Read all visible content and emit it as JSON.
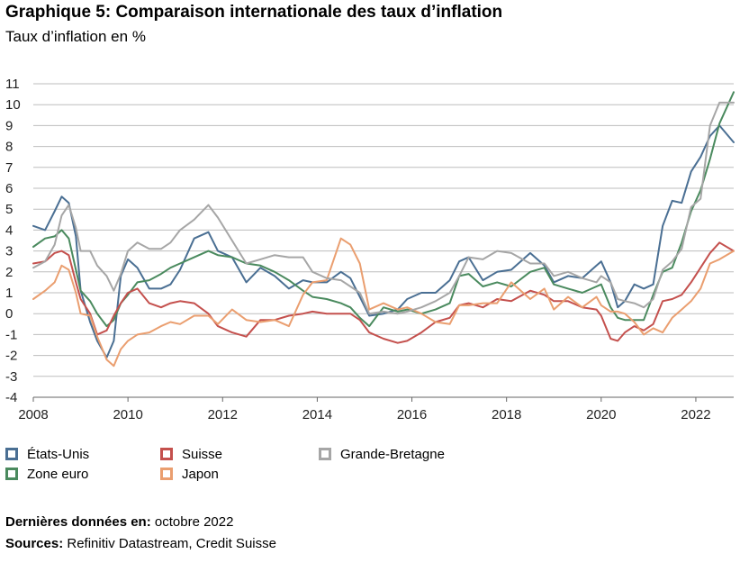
{
  "header": {
    "title": "Graphique 5: Comparaison internationale des taux d’inflation",
    "subtitle": "Taux d’inflation en %"
  },
  "footer": {
    "latest_label": "Dernières données en:",
    "latest_value": "octobre 2022",
    "sources_label": "Sources:",
    "sources_value": "Refinitiv Datastream, Credit Suisse"
  },
  "legend": [
    {
      "label": "États-Unis",
      "color": "#4a6f93"
    },
    {
      "label": "Zone euro",
      "color": "#4a8a5e"
    },
    {
      "label": "Suisse",
      "color": "#c4504d"
    },
    {
      "label": "Japon",
      "color": "#ea9e6f"
    },
    {
      "label": "Grande-Bretagne",
      "color": "#a6a6a6"
    }
  ],
  "chart_data": {
    "type": "line",
    "title": "Graphique 5: Comparaison internationale des taux d’inflation",
    "ylabel": "Taux d’inflation en %",
    "xlabel": "",
    "xlim": [
      2008,
      2022.8
    ],
    "ylim": [
      -4,
      11
    ],
    "xticks": [
      2008,
      2010,
      2012,
      2014,
      2016,
      2018,
      2020,
      2022
    ],
    "yticks": [
      -4,
      -3,
      -2,
      -1,
      0,
      1,
      2,
      3,
      4,
      5,
      6,
      7,
      8,
      9,
      10,
      11
    ],
    "grid": "horizontal",
    "legend_position": "bottom",
    "series": [
      {
        "name": "États-Unis",
        "color": "#4a6f93",
        "x": [
          2008.0,
          2008.25,
          2008.45,
          2008.6,
          2008.75,
          2008.9,
          2009.0,
          2009.2,
          2009.35,
          2009.55,
          2009.7,
          2009.85,
          2010.0,
          2010.2,
          2010.45,
          2010.7,
          2010.9,
          2011.1,
          2011.4,
          2011.7,
          2011.9,
          2012.2,
          2012.5,
          2012.8,
          2013.1,
          2013.4,
          2013.7,
          2013.9,
          2014.2,
          2014.5,
          2014.7,
          2014.9,
          2015.1,
          2015.4,
          2015.7,
          2015.9,
          2016.2,
          2016.5,
          2016.8,
          2017.0,
          2017.2,
          2017.5,
          2017.8,
          2018.1,
          2018.5,
          2018.8,
          2019.0,
          2019.3,
          2019.6,
          2019.9,
          2020.0,
          2020.2,
          2020.35,
          2020.5,
          2020.7,
          2020.9,
          2021.1,
          2021.3,
          2021.5,
          2021.7,
          2021.9,
          2022.1,
          2022.3,
          2022.5,
          2022.8
        ],
        "y": [
          4.2,
          4.0,
          4.9,
          5.6,
          5.3,
          3.7,
          1.1,
          -0.4,
          -1.3,
          -2.1,
          -1.3,
          1.8,
          2.6,
          2.2,
          1.2,
          1.2,
          1.4,
          2.1,
          3.6,
          3.9,
          3.0,
          2.7,
          1.5,
          2.2,
          1.8,
          1.2,
          1.6,
          1.5,
          1.5,
          2.0,
          1.7,
          0.8,
          -0.1,
          0.0,
          0.2,
          0.7,
          1.0,
          1.0,
          1.6,
          2.5,
          2.7,
          1.6,
          2.0,
          2.1,
          2.9,
          2.3,
          1.5,
          1.8,
          1.7,
          2.3,
          2.5,
          1.5,
          0.3,
          0.6,
          1.4,
          1.2,
          1.4,
          4.2,
          5.4,
          5.3,
          6.8,
          7.5,
          8.5,
          9.0,
          8.2
        ]
      },
      {
        "name": "Zone euro",
        "color": "#4a8a5e",
        "x": [
          2008.0,
          2008.25,
          2008.45,
          2008.6,
          2008.75,
          2008.9,
          2009.0,
          2009.2,
          2009.35,
          2009.55,
          2009.7,
          2009.85,
          2010.0,
          2010.2,
          2010.45,
          2010.7,
          2010.9,
          2011.1,
          2011.4,
          2011.7,
          2011.9,
          2012.2,
          2012.5,
          2012.8,
          2013.1,
          2013.4,
          2013.7,
          2013.9,
          2014.2,
          2014.5,
          2014.7,
          2014.9,
          2015.1,
          2015.4,
          2015.7,
          2015.9,
          2016.2,
          2016.5,
          2016.8,
          2017.0,
          2017.2,
          2017.5,
          2017.8,
          2018.1,
          2018.5,
          2018.8,
          2019.0,
          2019.3,
          2019.6,
          2019.9,
          2020.0,
          2020.2,
          2020.35,
          2020.5,
          2020.7,
          2020.9,
          2021.1,
          2021.3,
          2021.5,
          2021.7,
          2021.9,
          2022.1,
          2022.3,
          2022.5,
          2022.8
        ],
        "y": [
          3.2,
          3.6,
          3.7,
          4.0,
          3.6,
          2.1,
          1.1,
          0.6,
          0.0,
          -0.6,
          -0.3,
          0.5,
          0.9,
          1.5,
          1.6,
          1.9,
          2.2,
          2.4,
          2.7,
          3.0,
          2.8,
          2.7,
          2.4,
          2.3,
          2.0,
          1.6,
          1.1,
          0.8,
          0.7,
          0.5,
          0.3,
          -0.2,
          -0.6,
          0.3,
          0.1,
          0.2,
          0.0,
          0.2,
          0.5,
          1.8,
          1.9,
          1.3,
          1.5,
          1.3,
          2.0,
          2.2,
          1.4,
          1.2,
          1.0,
          1.3,
          1.4,
          0.3,
          -0.2,
          -0.3,
          -0.3,
          -0.3,
          0.9,
          2.0,
          2.2,
          3.4,
          4.9,
          5.9,
          7.4,
          9.1,
          10.6
        ]
      },
      {
        "name": "Suisse",
        "color": "#c4504d",
        "x": [
          2008.0,
          2008.25,
          2008.45,
          2008.6,
          2008.75,
          2008.9,
          2009.0,
          2009.2,
          2009.35,
          2009.55,
          2009.7,
          2009.85,
          2010.0,
          2010.2,
          2010.45,
          2010.7,
          2010.9,
          2011.1,
          2011.4,
          2011.7,
          2011.9,
          2012.2,
          2012.5,
          2012.8,
          2013.1,
          2013.4,
          2013.7,
          2013.9,
          2014.2,
          2014.5,
          2014.7,
          2014.9,
          2015.1,
          2015.4,
          2015.7,
          2015.9,
          2016.2,
          2016.5,
          2016.8,
          2017.0,
          2017.2,
          2017.5,
          2017.8,
          2018.1,
          2018.5,
          2018.8,
          2019.0,
          2019.3,
          2019.6,
          2019.9,
          2020.0,
          2020.2,
          2020.35,
          2020.5,
          2020.7,
          2020.9,
          2021.1,
          2021.3,
          2021.5,
          2021.7,
          2021.9,
          2022.1,
          2022.3,
          2022.5,
          2022.8
        ],
        "y": [
          2.4,
          2.5,
          2.9,
          3.0,
          2.8,
          1.5,
          0.7,
          0.0,
          -1.0,
          -0.8,
          -0.1,
          0.5,
          1.0,
          1.2,
          0.5,
          0.3,
          0.5,
          0.6,
          0.5,
          0.0,
          -0.6,
          -0.9,
          -1.1,
          -0.3,
          -0.3,
          -0.1,
          0.0,
          0.1,
          0.0,
          0.0,
          0.0,
          -0.3,
          -0.9,
          -1.2,
          -1.4,
          -1.3,
          -0.9,
          -0.4,
          -0.2,
          0.4,
          0.5,
          0.3,
          0.7,
          0.6,
          1.1,
          0.9,
          0.6,
          0.6,
          0.3,
          0.2,
          -0.1,
          -1.2,
          -1.3,
          -0.9,
          -0.6,
          -0.8,
          -0.5,
          0.6,
          0.7,
          0.9,
          1.5,
          2.2,
          2.9,
          3.4,
          3.0
        ]
      },
      {
        "name": "Japon",
        "color": "#ea9e6f",
        "x": [
          2008.0,
          2008.25,
          2008.45,
          2008.6,
          2008.75,
          2008.9,
          2009.0,
          2009.2,
          2009.35,
          2009.55,
          2009.7,
          2009.85,
          2010.0,
          2010.2,
          2010.45,
          2010.7,
          2010.9,
          2011.1,
          2011.4,
          2011.7,
          2011.9,
          2012.2,
          2012.5,
          2012.8,
          2013.1,
          2013.4,
          2013.7,
          2013.9,
          2014.2,
          2014.5,
          2014.7,
          2014.9,
          2015.1,
          2015.4,
          2015.7,
          2015.9,
          2016.2,
          2016.5,
          2016.8,
          2017.0,
          2017.2,
          2017.5,
          2017.8,
          2018.1,
          2018.5,
          2018.8,
          2019.0,
          2019.3,
          2019.6,
          2019.9,
          2020.0,
          2020.2,
          2020.35,
          2020.5,
          2020.7,
          2020.9,
          2021.1,
          2021.3,
          2021.5,
          2021.7,
          2021.9,
          2022.1,
          2022.3,
          2022.5,
          2022.8
        ],
        "y": [
          0.7,
          1.1,
          1.5,
          2.3,
          2.1,
          1.0,
          0.0,
          -0.1,
          -1.1,
          -2.2,
          -2.5,
          -1.7,
          -1.3,
          -1.0,
          -0.9,
          -0.6,
          -0.4,
          -0.5,
          -0.1,
          -0.1,
          -0.5,
          0.2,
          -0.3,
          -0.4,
          -0.3,
          -0.6,
          0.9,
          1.5,
          1.6,
          3.6,
          3.3,
          2.4,
          0.2,
          0.5,
          0.2,
          0.3,
          0.0,
          -0.4,
          -0.5,
          0.4,
          0.4,
          0.5,
          0.5,
          1.5,
          0.7,
          1.2,
          0.2,
          0.8,
          0.3,
          0.8,
          0.4,
          0.1,
          0.1,
          0.0,
          -0.4,
          -1.0,
          -0.7,
          -0.9,
          -0.2,
          0.2,
          0.6,
          1.2,
          2.4,
          2.6,
          3.0
        ]
      },
      {
        "name": "Grande-Bretagne",
        "color": "#a6a6a6",
        "x": [
          2008.0,
          2008.25,
          2008.45,
          2008.6,
          2008.75,
          2008.9,
          2009.0,
          2009.2,
          2009.35,
          2009.55,
          2009.7,
          2009.85,
          2010.0,
          2010.2,
          2010.45,
          2010.7,
          2010.9,
          2011.1,
          2011.4,
          2011.7,
          2011.9,
          2012.2,
          2012.5,
          2012.8,
          2013.1,
          2013.4,
          2013.7,
          2013.9,
          2014.2,
          2014.5,
          2014.7,
          2014.9,
          2015.1,
          2015.4,
          2015.7,
          2015.9,
          2016.2,
          2016.5,
          2016.8,
          2017.0,
          2017.2,
          2017.5,
          2017.8,
          2018.1,
          2018.5,
          2018.8,
          2019.0,
          2019.3,
          2019.6,
          2019.9,
          2020.0,
          2020.2,
          2020.35,
          2020.5,
          2020.7,
          2020.9,
          2021.1,
          2021.3,
          2021.5,
          2021.7,
          2021.9,
          2022.1,
          2022.3,
          2022.5,
          2022.8
        ],
        "y": [
          2.2,
          2.5,
          3.3,
          4.7,
          5.2,
          4.1,
          3.0,
          3.0,
          2.3,
          1.8,
          1.1,
          1.9,
          3.0,
          3.4,
          3.1,
          3.1,
          3.4,
          4.0,
          4.5,
          5.2,
          4.6,
          3.5,
          2.4,
          2.6,
          2.8,
          2.7,
          2.7,
          2.0,
          1.7,
          1.6,
          1.3,
          1.0,
          0.0,
          0.1,
          0.0,
          0.1,
          0.3,
          0.6,
          1.0,
          1.8,
          2.7,
          2.6,
          3.0,
          2.9,
          2.4,
          2.4,
          1.8,
          2.0,
          1.7,
          1.5,
          1.8,
          1.5,
          0.7,
          0.6,
          0.5,
          0.3,
          0.7,
          2.1,
          2.5,
          3.1,
          5.1,
          5.5,
          9.0,
          10.1,
          10.1
        ]
      }
    ]
  }
}
